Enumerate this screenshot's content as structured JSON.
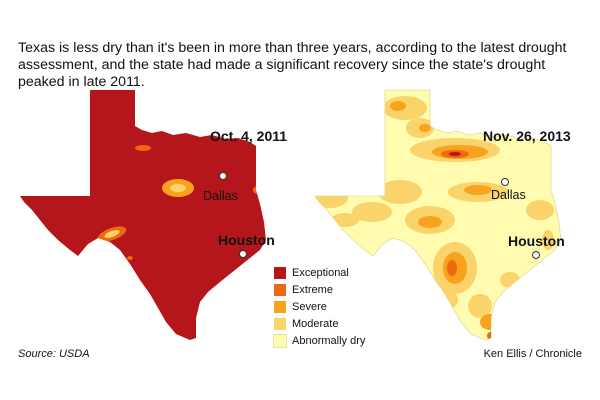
{
  "intro_text": "Texas is less dry than it's been in more than three years, according to the latest drought assessment, and the state had made a significant recovery since the state's drought peaked in late 2011.",
  "maps": [
    {
      "date": "Oct. 4, 2011",
      "cities": {
        "dallas": "Dallas",
        "houston": "Houston"
      }
    },
    {
      "date": "Nov. 26, 2013",
      "cities": {
        "dallas": "Dallas",
        "houston": "Houston"
      }
    }
  ],
  "legend": [
    {
      "label": "Exceptional",
      "color": "#b5161b"
    },
    {
      "label": "Extreme",
      "color": "#ee6a12"
    },
    {
      "label": "Severe",
      "color": "#f8a21d"
    },
    {
      "label": "Moderate",
      "color": "#fbd36b"
    },
    {
      "label": "Abnormally dry",
      "color": "#fffcb0"
    }
  ],
  "source": "Source: USDA",
  "credit": "Ken Ellis  / Chronicle"
}
